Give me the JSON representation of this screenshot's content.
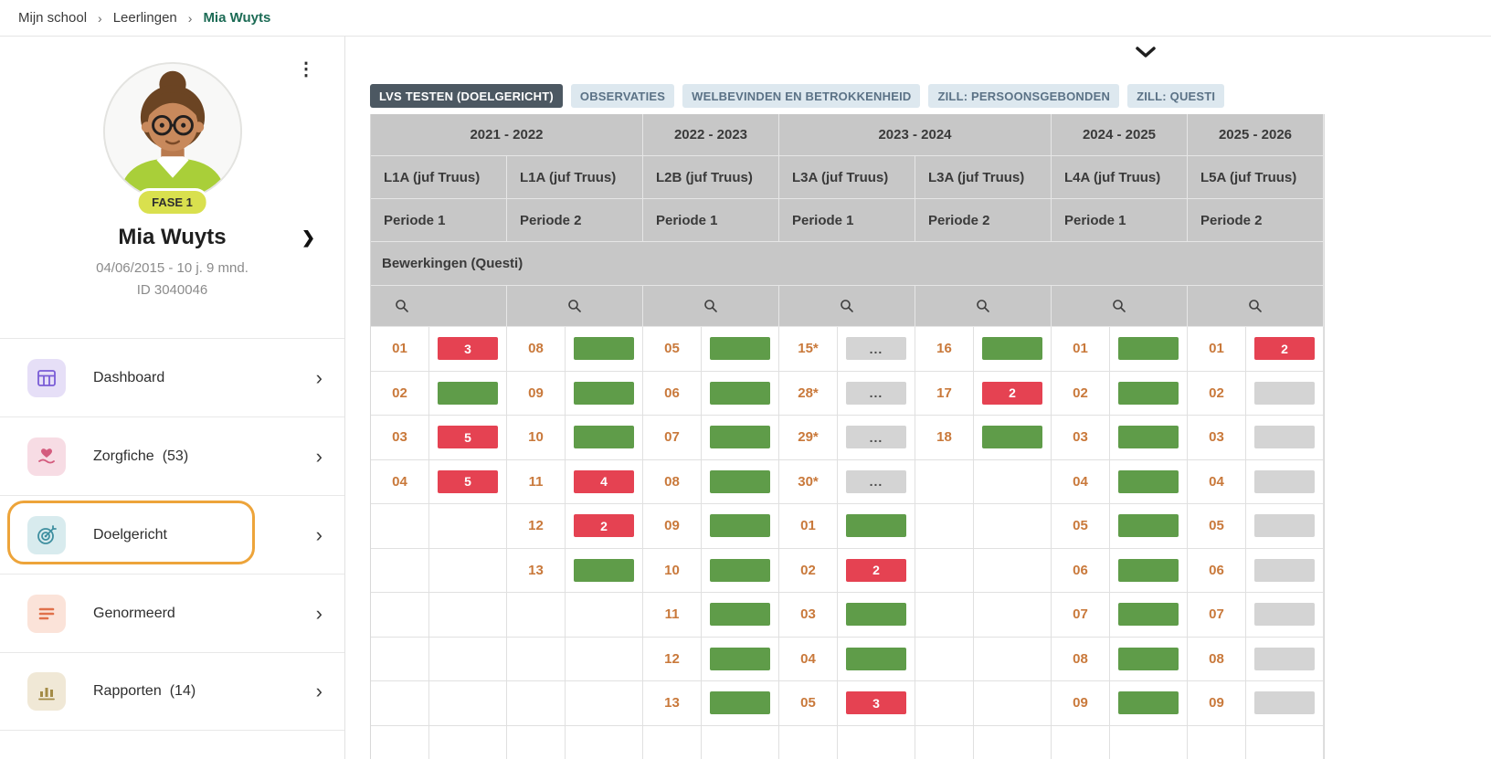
{
  "breadcrumb": {
    "separator": "›",
    "items": [
      {
        "label": "Mijn school",
        "current": false
      },
      {
        "label": "Leerlingen",
        "current": false
      },
      {
        "label": "Mia Wuyts",
        "current": true
      }
    ]
  },
  "profile": {
    "kebab_icon": "⋮",
    "phase_badge": "FASE 1",
    "name": "Mia Wuyts",
    "expand_chevron": "❯",
    "birthdate_age": "04/06/2015 - 10 j. 9 mnd.",
    "student_id": "ID 3040046"
  },
  "sidebar": {
    "chevron": "›",
    "items": [
      {
        "label": "Dashboard",
        "count": "",
        "icon": "dashboard-grid-icon",
        "highlighted": false
      },
      {
        "label": "Zorgfiche",
        "count": "(53)",
        "icon": "care-heart-icon",
        "highlighted": false
      },
      {
        "label": "Doelgericht",
        "count": "",
        "icon": "target-icon",
        "highlighted": true
      },
      {
        "label": "Genormeerd",
        "count": "",
        "icon": "lines-icon",
        "highlighted": false
      },
      {
        "label": "Rapporten",
        "count": "(14)",
        "icon": "bar-chart-icon",
        "highlighted": false
      }
    ]
  },
  "main": {
    "tabs": [
      {
        "label": "LVS TESTEN (DOELGERICHT)",
        "active": true
      },
      {
        "label": "OBSERVATIES",
        "active": false
      },
      {
        "label": "WELBEVINDEN EN BETROKKENHEID",
        "active": false
      },
      {
        "label": "ZILL: PERSOONSGEBONDEN",
        "active": false
      },
      {
        "label": "ZILL: QUESTI",
        "active": false
      }
    ]
  },
  "table": {
    "section_title": "Bewerkingen (Questi)",
    "year_groups": [
      {
        "label": "2021 - 2022",
        "span": 2
      },
      {
        "label": "2022 - 2023",
        "span": 1
      },
      {
        "label": "2023 - 2024",
        "span": 2
      },
      {
        "label": "2024 - 2025",
        "span": 1
      },
      {
        "label": "2025 - 2026",
        "span": 1
      }
    ],
    "columns": [
      {
        "class_label": "L1A (juf Truus)",
        "periode": "Periode 1",
        "cells": [
          {
            "num": "01",
            "bar": "red",
            "value": "3"
          },
          {
            "num": "02",
            "bar": "green",
            "value": ""
          },
          {
            "num": "03",
            "bar": "red",
            "value": "5"
          },
          {
            "num": "04",
            "bar": "red",
            "value": "5"
          }
        ]
      },
      {
        "class_label": "L1A (juf Truus)",
        "periode": "Periode 2",
        "cells": [
          {
            "num": "08",
            "bar": "green",
            "value": ""
          },
          {
            "num": "09",
            "bar": "green",
            "value": ""
          },
          {
            "num": "10",
            "bar": "green",
            "value": ""
          },
          {
            "num": "11",
            "bar": "red",
            "value": "4"
          },
          {
            "num": "12",
            "bar": "red",
            "value": "2"
          },
          {
            "num": "13",
            "bar": "green",
            "value": ""
          }
        ]
      },
      {
        "class_label": "L2B (juf Truus)",
        "periode": "Periode 1",
        "cells": [
          {
            "num": "05",
            "bar": "green",
            "value": ""
          },
          {
            "num": "06",
            "bar": "green",
            "value": ""
          },
          {
            "num": "07",
            "bar": "green",
            "value": ""
          },
          {
            "num": "08",
            "bar": "green",
            "value": ""
          },
          {
            "num": "09",
            "bar": "green",
            "value": ""
          },
          {
            "num": "10",
            "bar": "green",
            "value": ""
          },
          {
            "num": "11",
            "bar": "green",
            "value": ""
          },
          {
            "num": "12",
            "bar": "green",
            "value": ""
          },
          {
            "num": "13",
            "bar": "green",
            "value": ""
          }
        ]
      },
      {
        "class_label": "L3A (juf Truus)",
        "periode": "Periode 1",
        "cells": [
          {
            "num": "15*",
            "bar": "gray",
            "value": "..."
          },
          {
            "num": "28*",
            "bar": "gray",
            "value": "..."
          },
          {
            "num": "29*",
            "bar": "gray",
            "value": "..."
          },
          {
            "num": "30*",
            "bar": "gray",
            "value": "..."
          },
          {
            "num": "01",
            "bar": "green",
            "value": ""
          },
          {
            "num": "02",
            "bar": "red",
            "value": "2"
          },
          {
            "num": "03",
            "bar": "green",
            "value": ""
          },
          {
            "num": "04",
            "bar": "green",
            "value": ""
          },
          {
            "num": "05",
            "bar": "red",
            "value": "3"
          }
        ]
      },
      {
        "class_label": "L3A (juf Truus)",
        "periode": "Periode 2",
        "cells": [
          {
            "num": "16",
            "bar": "green",
            "value": ""
          },
          {
            "num": "17",
            "bar": "red",
            "value": "2"
          },
          {
            "num": "18",
            "bar": "green",
            "value": ""
          }
        ]
      },
      {
        "class_label": "L4A (juf Truus)",
        "periode": "Periode 1",
        "cells": [
          {
            "num": "01",
            "bar": "green",
            "value": ""
          },
          {
            "num": "02",
            "bar": "green",
            "value": ""
          },
          {
            "num": "03",
            "bar": "green",
            "value": ""
          },
          {
            "num": "04",
            "bar": "green",
            "value": ""
          },
          {
            "num": "05",
            "bar": "green",
            "value": ""
          },
          {
            "num": "06",
            "bar": "green",
            "value": ""
          },
          {
            "num": "07",
            "bar": "green",
            "value": ""
          },
          {
            "num": "08",
            "bar": "green",
            "value": ""
          },
          {
            "num": "09",
            "bar": "green",
            "value": ""
          }
        ]
      },
      {
        "class_label": "L5A (juf Truus)",
        "periode": "Periode 2",
        "cells": [
          {
            "num": "01",
            "bar": "red",
            "value": "2"
          },
          {
            "num": "02",
            "bar": "gray",
            "value": ""
          },
          {
            "num": "03",
            "bar": "gray",
            "value": ""
          },
          {
            "num": "04",
            "bar": "gray",
            "value": ""
          },
          {
            "num": "05",
            "bar": "gray",
            "value": ""
          },
          {
            "num": "06",
            "bar": "gray",
            "value": ""
          },
          {
            "num": "07",
            "bar": "gray",
            "value": ""
          },
          {
            "num": "08",
            "bar": "gray",
            "value": ""
          },
          {
            "num": "09",
            "bar": "gray",
            "value": ""
          }
        ]
      }
    ]
  },
  "colors": {
    "green_bar": "#5f9c49",
    "red_bar": "#e54252",
    "gray_bar": "#d4d4d4",
    "header_gray": "#c7c7c7",
    "highlight_orange": "#eda43a",
    "active_tab": "#4c5862",
    "breadcrumb_active": "#1c6b55",
    "number_orange": "#c9793b",
    "phase_badge_bg": "#d9e04e"
  }
}
